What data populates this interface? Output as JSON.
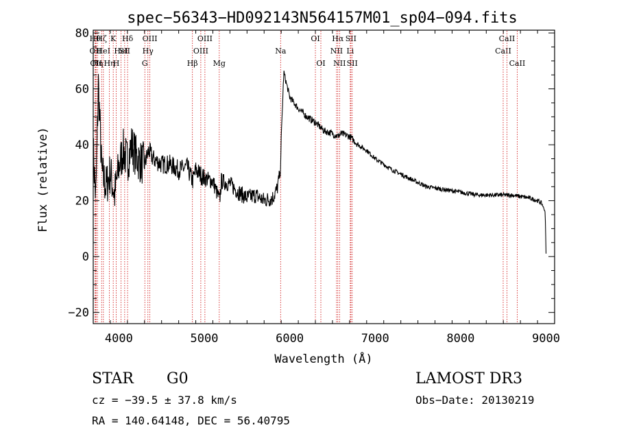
{
  "chart_data": {
    "type": "line",
    "title": "spec−56343−HD092143N564157M01_sp04−094.fits",
    "xlabel": "Wavelength (Å)",
    "ylabel": "Flux (relative)",
    "xlim": [
      3700,
      9100
    ],
    "ylim": [
      -24,
      81
    ],
    "x_ticks": [
      4000,
      5000,
      6000,
      7000,
      8000,
      9000
    ],
    "y_ticks": [
      -20,
      0,
      20,
      40,
      60,
      80
    ],
    "x_tick_labels": [
      "4000",
      "5000",
      "6000",
      "7000",
      "8000",
      "9000"
    ],
    "y_tick_labels": [
      "−20",
      "0",
      "20",
      "40",
      "60",
      "80"
    ],
    "line_color": "#000000",
    "marker_color": "#cc0000",
    "series": [
      {
        "name": "flux",
        "x": [
          3700,
          3730,
          3760,
          3800,
          3850,
          3900,
          3950,
          4000,
          4050,
          4100,
          4150,
          4200,
          4250,
          4300,
          4350,
          4400,
          4500,
          4600,
          4700,
          4800,
          4862,
          4900,
          5000,
          5100,
          5180,
          5200,
          5300,
          5400,
          5500,
          5600,
          5700,
          5800,
          5850,
          5890,
          5900,
          5930,
          5960,
          6000,
          6100,
          6200,
          6300,
          6400,
          6500,
          6563,
          6600,
          6700,
          6800,
          6900,
          7000,
          7200,
          7400,
          7600,
          7800,
          8000,
          8200,
          8400,
          8600,
          8800,
          8900,
          8950,
          8990,
          9000
        ],
        "y": [
          38,
          20,
          62,
          30,
          25,
          30,
          22,
          32,
          38,
          34,
          40,
          36,
          34,
          33,
          38,
          35,
          33,
          33,
          31,
          32,
          27,
          31,
          28,
          27,
          20,
          27,
          26,
          23,
          21,
          22,
          20,
          21,
          24,
          30,
          42,
          66,
          62,
          57,
          53,
          50,
          48,
          45,
          44,
          43,
          44,
          43,
          40,
          38,
          35,
          31,
          28,
          25,
          24,
          23,
          22,
          22,
          22,
          21,
          20,
          19,
          16,
          1
        ]
      }
    ],
    "line_markers": [
      {
        "x": 3722,
        "label": "Hθ",
        "row": 0
      },
      {
        "x": 3727,
        "label": "OII",
        "row": 1
      },
      {
        "x": 3734,
        "label": "OII",
        "row": 2
      },
      {
        "x": 3750,
        "label": "Hη",
        "row": 2
      },
      {
        "x": 3798,
        "label": "Hζ",
        "row": 0
      },
      {
        "x": 3819,
        "label": "HeI",
        "row": 1
      },
      {
        "x": 3889,
        "label": "Hη",
        "row": 2
      },
      {
        "x": 3934,
        "label": "K",
        "row": 0
      },
      {
        "x": 3969,
        "label": "H",
        "row": 2
      },
      {
        "x": 4026,
        "label": "HeI",
        "row": 1
      },
      {
        "x": 4068,
        "label": "SII",
        "row": 1
      },
      {
        "x": 4102,
        "label": "Hδ",
        "row": 0
      },
      {
        "x": 4304,
        "label": "G",
        "row": 2
      },
      {
        "x": 4340,
        "label": "Hγ",
        "row": 1
      },
      {
        "x": 4363,
        "label": "OIII",
        "row": 0
      },
      {
        "x": 4861,
        "label": "Hβ",
        "row": 2
      },
      {
        "x": 4959,
        "label": "OIII",
        "row": 1
      },
      {
        "x": 5007,
        "label": "OIII",
        "row": 0
      },
      {
        "x": 5175,
        "label": "Mg",
        "row": 2
      },
      {
        "x": 5893,
        "label": "Na",
        "row": 1
      },
      {
        "x": 6300,
        "label": "OI",
        "row": 0
      },
      {
        "x": 6364,
        "label": "OI",
        "row": 2
      },
      {
        "x": 6548,
        "label": "NII",
        "row": 1
      },
      {
        "x": 6563,
        "label": "Hα",
        "row": 0
      },
      {
        "x": 6583,
        "label": "NII",
        "row": 2
      },
      {
        "x": 6708,
        "label": "Li",
        "row": 1
      },
      {
        "x": 6716,
        "label": "SII",
        "row": 0
      },
      {
        "x": 6731,
        "label": "SII",
        "row": 2
      },
      {
        "x": 8498,
        "label": "CaII",
        "row": 1
      },
      {
        "x": 8542,
        "label": "CaII",
        "row": 0
      },
      {
        "x": 8662,
        "label": "CaII",
        "row": 2
      }
    ]
  },
  "info": {
    "class": "STAR",
    "subclass": "G0",
    "survey": "LAMOST DR3",
    "cz": "cz = −39.5 ± 37.8 km/s",
    "obsdate": "Obs−Date: 20130219",
    "radec": "RA = 140.64148, DEC =  56.40795"
  }
}
